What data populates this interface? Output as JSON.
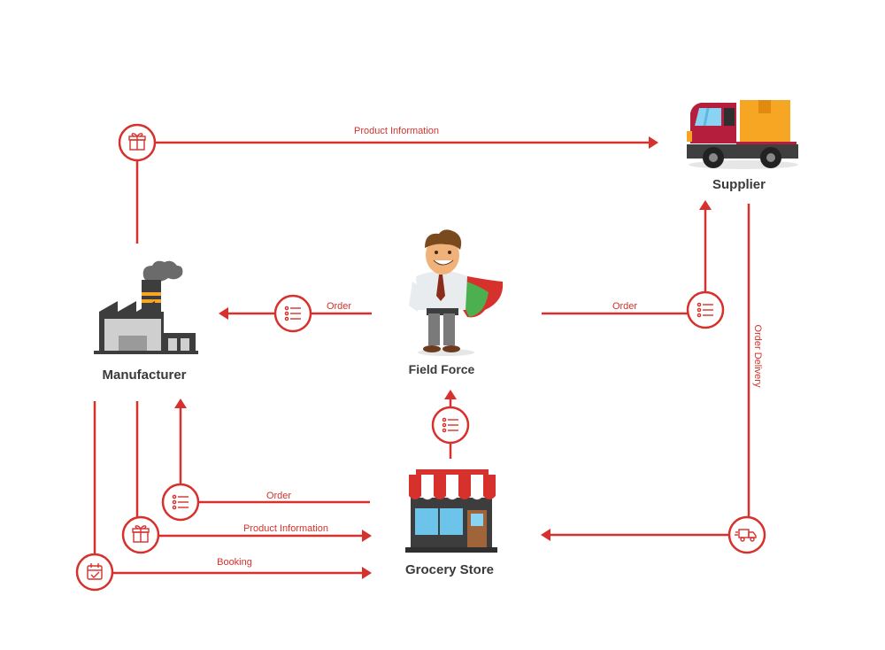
{
  "nodes": {
    "supplier": "Supplier",
    "manufacturer": "Manufacturer",
    "field_force": "Field Force",
    "grocery_store": "Grocery Store"
  },
  "edges": {
    "product_information_top": "Product Information",
    "order_field_to_manufacturer": "Order",
    "order_field_to_supplier": "Order",
    "order_delivery": "Order Delivery",
    "order_store_to_manufacturer": "Order",
    "product_information_bottom": "Product Information",
    "booking": "Booking"
  },
  "colors": {
    "accent": "#d6312c",
    "text": "#3a3a3a"
  },
  "icons": {
    "gift": "gift-icon",
    "list": "list-icon",
    "truck": "delivery-truck-icon",
    "calendar": "calendar-check-icon"
  }
}
